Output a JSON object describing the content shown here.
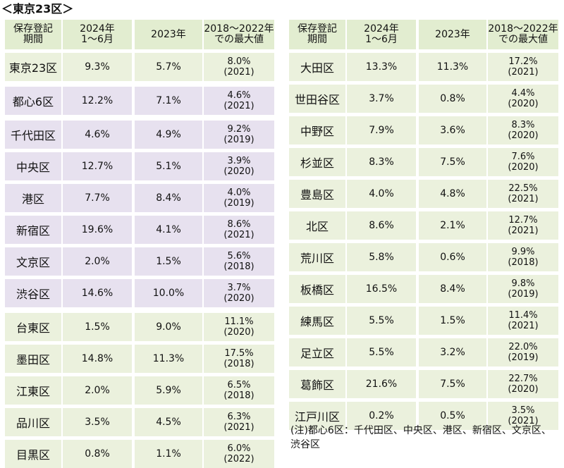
{
  "title": "＜東京23区＞",
  "header": {
    "period": "保存登記\n期間",
    "y2024": "2024年\n1～6月",
    "y2023": "2023年",
    "max": "2018～2022年\nでの最大値"
  },
  "left_rows": [
    {
      "name": "東京23区",
      "v2024": "9.3%",
      "v2023": "5.7%",
      "max": "8.0%\n(2021)",
      "group": "green"
    },
    {
      "name": "都心6区",
      "v2024": "12.2%",
      "v2023": "7.1%",
      "max": "4.6%\n(2021)",
      "group": "purple"
    },
    {
      "name": "千代田区",
      "v2024": "4.6%",
      "v2023": "4.9%",
      "max": "9.2%\n(2019)",
      "group": "purple"
    },
    {
      "name": "中央区",
      "v2024": "12.7%",
      "v2023": "5.1%",
      "max": "3.9%\n(2020)",
      "group": "purple"
    },
    {
      "name": "港区",
      "v2024": "7.7%",
      "v2023": "8.4%",
      "max": "4.0%\n(2019)",
      "group": "purple"
    },
    {
      "name": "新宿区",
      "v2024": "19.6%",
      "v2023": "4.1%",
      "max": "8.6%\n(2021)",
      "group": "purple"
    },
    {
      "name": "文京区",
      "v2024": "2.0%",
      "v2023": "1.5%",
      "max": "5.6%\n(2018)",
      "group": "purple"
    },
    {
      "name": "渋谷区",
      "v2024": "14.6%",
      "v2023": "10.0%",
      "max": "3.7%\n(2020)",
      "group": "purple"
    },
    {
      "name": "台東区",
      "v2024": "1.5%",
      "v2023": "9.0%",
      "max": "11.1%\n(2020)",
      "group": "green"
    },
    {
      "name": "墨田区",
      "v2024": "14.8%",
      "v2023": "11.3%",
      "max": "17.5%\n(2018)",
      "group": "green"
    },
    {
      "name": "江東区",
      "v2024": "2.0%",
      "v2023": "5.9%",
      "max": "6.5%\n(2018)",
      "group": "green"
    },
    {
      "name": "品川区",
      "v2024": "3.5%",
      "v2023": "4.5%",
      "max": "6.3%\n(2021)",
      "group": "green"
    },
    {
      "name": "目黒区",
      "v2024": "0.8%",
      "v2023": "1.1%",
      "max": "6.0%\n(2022)",
      "group": "green"
    }
  ],
  "right_rows": [
    {
      "name": "大田区",
      "v2024": "13.3%",
      "v2023": "11.3%",
      "max": "17.2%\n(2021)",
      "group": "green"
    },
    {
      "name": "世田谷区",
      "v2024": "3.7%",
      "v2023": "0.8%",
      "max": "4.4%\n(2020)",
      "group": "green"
    },
    {
      "name": "中野区",
      "v2024": "7.9%",
      "v2023": "3.6%",
      "max": "8.3%\n(2020)",
      "group": "green"
    },
    {
      "name": "杉並区",
      "v2024": "8.3%",
      "v2023": "7.5%",
      "max": "7.6%\n(2020)",
      "group": "green"
    },
    {
      "name": "豊島区",
      "v2024": "4.0%",
      "v2023": "4.8%",
      "max": "22.5%\n(2021)",
      "group": "green"
    },
    {
      "name": "北区",
      "v2024": "8.6%",
      "v2023": "2.1%",
      "max": "12.7%\n(2021)",
      "group": "green"
    },
    {
      "name": "荒川区",
      "v2024": "5.8%",
      "v2023": "0.6%",
      "max": "9.9%\n(2018)",
      "group": "green"
    },
    {
      "name": "板橋区",
      "v2024": "16.5%",
      "v2023": "8.4%",
      "max": "9.8%\n(2019)",
      "group": "green"
    },
    {
      "name": "練馬区",
      "v2024": "5.5%",
      "v2023": "1.5%",
      "max": "11.4%\n(2021)",
      "group": "green"
    },
    {
      "name": "足立区",
      "v2024": "5.5%",
      "v2023": "3.2%",
      "max": "22.0%\n(2019)",
      "group": "green"
    },
    {
      "name": "葛飾区",
      "v2024": "21.6%",
      "v2023": "7.5%",
      "max": "22.7%\n(2020)",
      "group": "green"
    },
    {
      "name": "江戸川区",
      "v2024": "0.2%",
      "v2023": "0.5%",
      "max": "3.5%\n(2021)",
      "group": "green"
    }
  ],
  "note": "(注)都心6区：千代田区、中央区、港区、新宿区、文京区、\n渋谷区",
  "colors": {
    "green": "#ebf1dd",
    "purple": "#e7e1ef",
    "header": "#e2edd0"
  }
}
